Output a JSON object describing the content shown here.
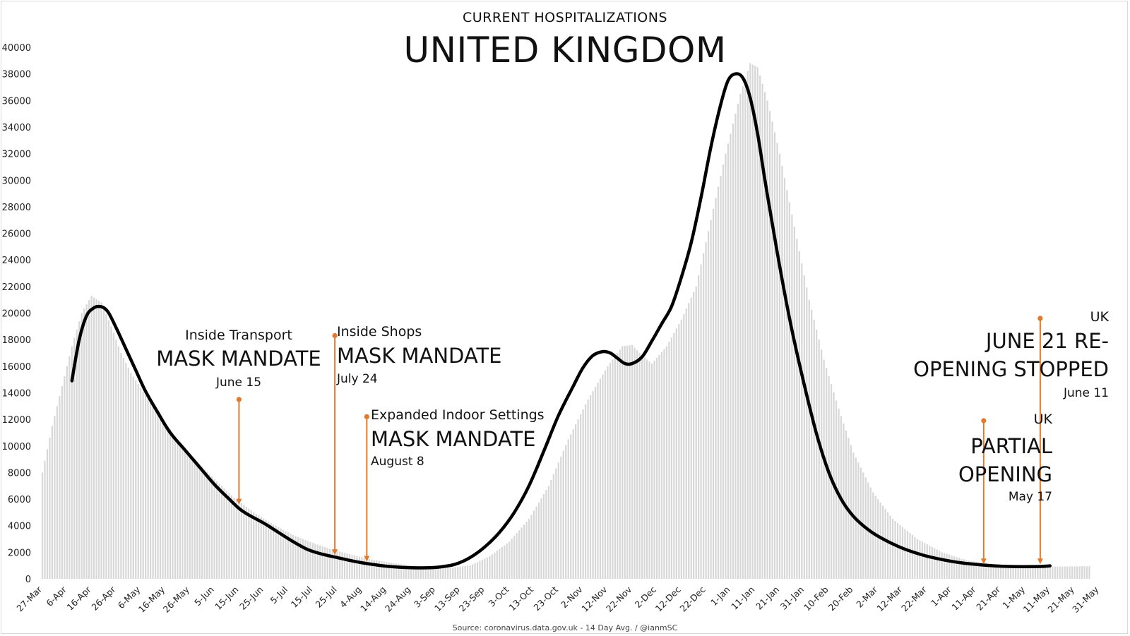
{
  "subtitle": "CURRENT HOSPITALIZATIONS",
  "title": "UNITED KINGDOM",
  "source": "Source: coronavirus.data.gov.uk - 14 Day Avg. / @ianmSC",
  "annotations": {
    "transport": {
      "label": "Inside Transport",
      "mandate": "MASK MANDATE",
      "date": "June 15"
    },
    "shops": {
      "label": "Inside Shops",
      "mandate": "MASK MANDATE",
      "date": "July 24"
    },
    "indoor": {
      "label": "Expanded Indoor Settings",
      "mandate": "MASK MANDATE",
      "date": "August 8"
    },
    "partial": {
      "region": "UK",
      "line1": "PARTIAL",
      "line2": "OPENING",
      "date": "May 17"
    },
    "reopening": {
      "region": "UK",
      "line1": "JUNE 21 RE-",
      "line2": "OPENING STOPPED",
      "date": "June 11"
    }
  },
  "colors": {
    "curve": "#000000",
    "bars": "#d7d7d7",
    "arrow": "#e07a2f",
    "axis_text": "#222222"
  },
  "chart_data": {
    "type": "area",
    "title": "UNITED KINGDOM",
    "subtitle": "CURRENT HOSPITALIZATIONS",
    "xlabel": "",
    "ylabel": "",
    "ylim": [
      0,
      40000
    ],
    "yticks": [
      0,
      2000,
      4000,
      6000,
      8000,
      10000,
      12000,
      14000,
      16000,
      18000,
      20000,
      22000,
      24000,
      26000,
      28000,
      30000,
      32000,
      34000,
      36000,
      38000,
      40000
    ],
    "x_tick_labels": [
      "27-Mar",
      "6-Apr",
      "16-Apr",
      "26-Apr",
      "6-May",
      "16-May",
      "26-May",
      "5-Jun",
      "15-Jun",
      "25-Jun",
      "5-Jul",
      "15-Jul",
      "25-Jul",
      "4-Aug",
      "14-Aug",
      "24-Aug",
      "3-Sep",
      "13-Sep",
      "23-Sep",
      "3-Oct",
      "13-Oct",
      "23-Oct",
      "2-Nov",
      "12-Nov",
      "22-Nov",
      "2-Dec",
      "12-Dec",
      "22-Dec",
      "1-Jan",
      "11-Jan",
      "21-Jan",
      "31-Jan",
      "10-Feb",
      "20-Feb",
      "2-Mar",
      "12-Mar",
      "22-Mar",
      "1-Apr",
      "11-Apr",
      "21-Apr",
      "1-May",
      "11-May",
      "21-May",
      "31-May"
    ],
    "grid": false,
    "legend": "none",
    "series": [
      {
        "kind": "bars",
        "points": [
          [
            0,
            8000
          ],
          [
            4,
            11500
          ],
          [
            8,
            14500
          ],
          [
            12,
            17500
          ],
          [
            16,
            20000
          ],
          [
            20,
            21300
          ],
          [
            24,
            20800
          ],
          [
            28,
            19000
          ],
          [
            32,
            17000
          ],
          [
            36,
            15500
          ],
          [
            42,
            13800
          ],
          [
            48,
            12300
          ],
          [
            55,
            10500
          ],
          [
            62,
            9000
          ],
          [
            70,
            7500
          ],
          [
            78,
            6100
          ],
          [
            86,
            5000
          ],
          [
            94,
            4100
          ],
          [
            102,
            3300
          ],
          [
            110,
            2700
          ],
          [
            118,
            2200
          ],
          [
            126,
            1800
          ],
          [
            134,
            1450
          ],
          [
            142,
            1200
          ],
          [
            150,
            1000
          ],
          [
            158,
            900
          ],
          [
            166,
            850
          ],
          [
            174,
            1000
          ],
          [
            182,
            1700
          ],
          [
            190,
            2800
          ],
          [
            198,
            4500
          ],
          [
            206,
            7000
          ],
          [
            214,
            10500
          ],
          [
            222,
            13500
          ],
          [
            230,
            16000
          ],
          [
            236,
            17500
          ],
          [
            240,
            17600
          ],
          [
            244,
            16800
          ],
          [
            248,
            16200
          ],
          [
            254,
            17500
          ],
          [
            260,
            19500
          ],
          [
            266,
            22000
          ],
          [
            272,
            27000
          ],
          [
            278,
            32000
          ],
          [
            284,
            36500
          ],
          [
            288,
            38800
          ],
          [
            291,
            38500
          ],
          [
            295,
            36000
          ],
          [
            300,
            32000
          ],
          [
            306,
            26500
          ],
          [
            312,
            21000
          ],
          [
            318,
            16500
          ],
          [
            324,
            12800
          ],
          [
            330,
            9500
          ],
          [
            338,
            6500
          ],
          [
            346,
            4500
          ],
          [
            356,
            3000
          ],
          [
            366,
            2000
          ],
          [
            376,
            1400
          ],
          [
            386,
            1100
          ],
          [
            396,
            950
          ],
          [
            406,
            900
          ],
          [
            426,
            950
          ]
        ]
      },
      {
        "kind": "line",
        "points": [
          [
            12,
            14900
          ],
          [
            15,
            18000
          ],
          [
            18,
            19800
          ],
          [
            21,
            20400
          ],
          [
            23,
            20500
          ],
          [
            25,
            20400
          ],
          [
            27,
            20000
          ],
          [
            30,
            18900
          ],
          [
            34,
            17300
          ],
          [
            38,
            15700
          ],
          [
            42,
            14100
          ],
          [
            47,
            12500
          ],
          [
            52,
            11000
          ],
          [
            58,
            9700
          ],
          [
            64,
            8400
          ],
          [
            70,
            7100
          ],
          [
            76,
            6000
          ],
          [
            80,
            5300
          ],
          [
            84,
            4800
          ],
          [
            90,
            4200
          ],
          [
            96,
            3500
          ],
          [
            102,
            2800
          ],
          [
            108,
            2200
          ],
          [
            114,
            1850
          ],
          [
            120,
            1600
          ],
          [
            126,
            1350
          ],
          [
            132,
            1150
          ],
          [
            140,
            950
          ],
          [
            148,
            850
          ],
          [
            156,
            830
          ],
          [
            162,
            900
          ],
          [
            168,
            1100
          ],
          [
            174,
            1600
          ],
          [
            180,
            2400
          ],
          [
            186,
            3500
          ],
          [
            192,
            5000
          ],
          [
            198,
            7000
          ],
          [
            204,
            9600
          ],
          [
            210,
            12300
          ],
          [
            216,
            14500
          ],
          [
            220,
            15900
          ],
          [
            224,
            16800
          ],
          [
            228,
            17100
          ],
          [
            231,
            17000
          ],
          [
            234,
            16600
          ],
          [
            237,
            16200
          ],
          [
            240,
            16200
          ],
          [
            244,
            16700
          ],
          [
            248,
            17900
          ],
          [
            252,
            19200
          ],
          [
            256,
            20500
          ],
          [
            260,
            22700
          ],
          [
            264,
            25300
          ],
          [
            268,
            28700
          ],
          [
            272,
            32500
          ],
          [
            276,
            35700
          ],
          [
            279,
            37500
          ],
          [
            282,
            38000
          ],
          [
            285,
            37700
          ],
          [
            288,
            36200
          ],
          [
            291,
            33500
          ],
          [
            294,
            30000
          ],
          [
            297,
            26700
          ],
          [
            301,
            22500
          ],
          [
            305,
            18700
          ],
          [
            310,
            14600
          ],
          [
            315,
            10900
          ],
          [
            320,
            8000
          ],
          [
            325,
            6000
          ],
          [
            330,
            4700
          ],
          [
            336,
            3700
          ],
          [
            342,
            3000
          ],
          [
            350,
            2300
          ],
          [
            358,
            1800
          ],
          [
            366,
            1450
          ],
          [
            374,
            1200
          ],
          [
            382,
            1050
          ],
          [
            390,
            950
          ],
          [
            398,
            920
          ],
          [
            406,
            930
          ],
          [
            410,
            980
          ]
        ]
      }
    ],
    "events": [
      {
        "x": 80,
        "y": 13500,
        "to": 5600,
        "label": "Inside Transport MASK MANDATE",
        "date": "June 15"
      },
      {
        "x": 119,
        "y": 18300,
        "to": 1800,
        "label": "Inside Shops MASK MANDATE",
        "date": "July 24"
      },
      {
        "x": 132,
        "y": 12200,
        "to": 1300,
        "label": "Expanded Indoor Settings MASK MANDATE",
        "date": "August 8"
      },
      {
        "x": 383,
        "y": 11900,
        "to": 1100,
        "label": "UK PARTIAL OPENING",
        "date": "May 17"
      },
      {
        "x": 406,
        "y": 19600,
        "to": 1100,
        "label": "UK JUNE 21 RE- OPENING STOPPED",
        "date": "June 11"
      }
    ]
  }
}
